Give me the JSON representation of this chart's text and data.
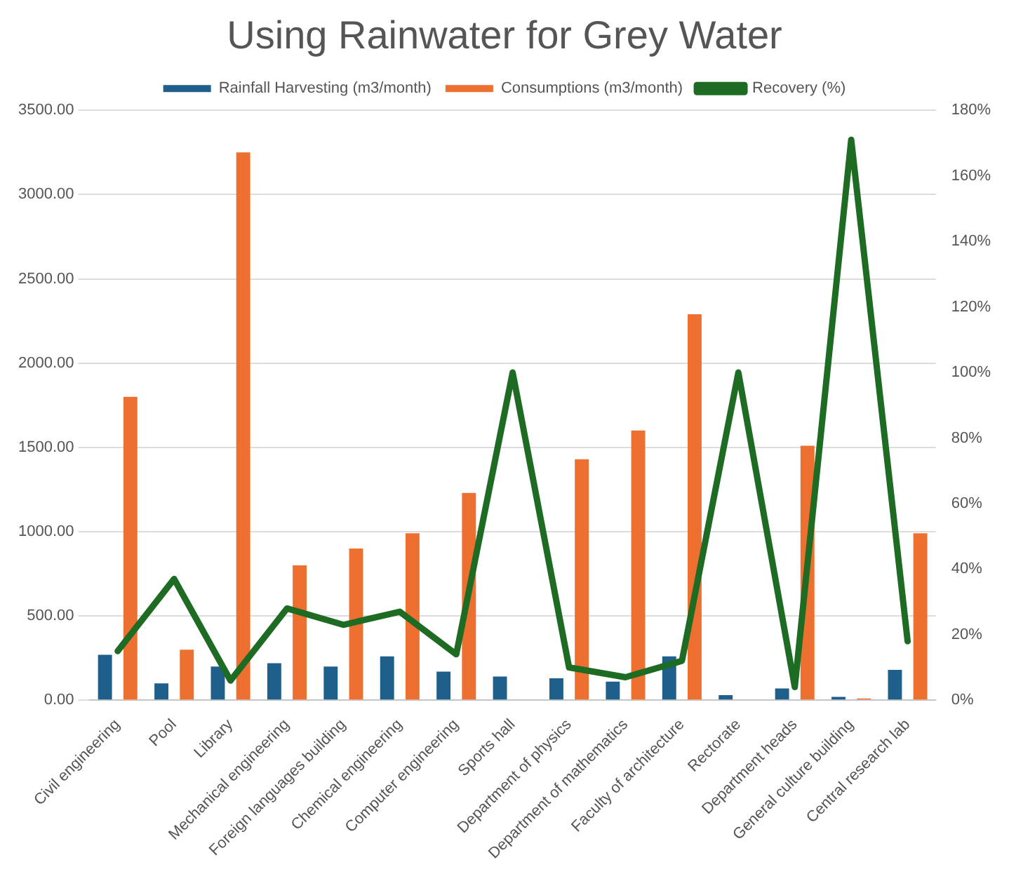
{
  "chart_data": {
    "type": "bar",
    "title": "Using Rainwater for Grey Water",
    "categories": [
      "Civil engineering",
      "Pool",
      "Library",
      "Mechanical engineering",
      "Foreign languages building",
      "Chemical engineering",
      "Computer engineering",
      "Sports hall",
      "Department of physics",
      "Department of mathematics",
      "Faculty of architecture",
      "Rectorate",
      "Department heads",
      "General culture building",
      "Central research lab"
    ],
    "series": [
      {
        "name": "Rainfall Harvesting (m3/month)",
        "color": "#1f5f8b",
        "values": [
          270,
          100,
          200,
          220,
          200,
          260,
          170,
          140,
          130,
          110,
          260,
          30,
          70,
          20,
          180
        ]
      },
      {
        "name": "Consumptions (m3/month)",
        "color": "#ed7031",
        "values": [
          1800,
          300,
          3250,
          800,
          900,
          990,
          1230,
          null,
          1430,
          1600,
          2290,
          null,
          1510,
          10,
          990
        ]
      },
      {
        "name": "Recovery (%)",
        "type": "line",
        "axis": "y2",
        "color": "#1e6b24",
        "values": [
          15,
          37,
          6,
          28,
          23,
          27,
          14,
          100,
          10,
          7,
          12,
          100,
          4,
          171,
          18
        ]
      }
    ],
    "ylim": [
      0,
      3500
    ],
    "yticks": [
      {
        "value": 0,
        "label": "0.00"
      },
      {
        "value": 500,
        "label": "500.00"
      },
      {
        "value": 1000,
        "label": "1000.00"
      },
      {
        "value": 1500,
        "label": "1500.00"
      },
      {
        "value": 2000,
        "label": "2000.00"
      },
      {
        "value": 2500,
        "label": "2500.00"
      },
      {
        "value": 3000,
        "label": "3000.00"
      },
      {
        "value": 3500,
        "label": "3500.00"
      }
    ],
    "y2lim": [
      0,
      180
    ],
    "y2ticks": [
      {
        "value": 0,
        "label": "0%"
      },
      {
        "value": 20,
        "label": "20%"
      },
      {
        "value": 40,
        "label": "40%"
      },
      {
        "value": 60,
        "label": "60%"
      },
      {
        "value": 80,
        "label": "80%"
      },
      {
        "value": 100,
        "label": "100%"
      },
      {
        "value": 120,
        "label": "120%"
      },
      {
        "value": 140,
        "label": "140%"
      },
      {
        "value": 160,
        "label": "160%"
      },
      {
        "value": 180,
        "label": "180%"
      }
    ],
    "grid": "y",
    "legend": "top",
    "marker": "none"
  }
}
